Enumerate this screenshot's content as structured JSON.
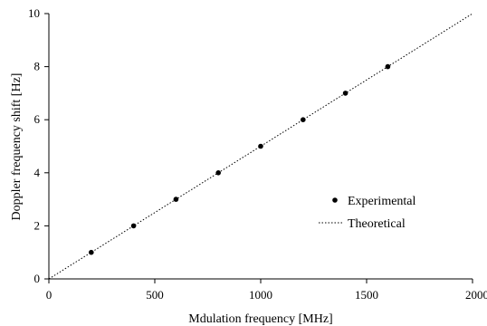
{
  "chart_data": {
    "type": "scatter",
    "title": "",
    "xlabel": "Mdulation frequency [MHz]",
    "ylabel": "Doppler frequency shift [Hz]",
    "xlim": [
      0,
      2000
    ],
    "ylim": [
      0,
      10
    ],
    "xticks": [
      "0",
      "500",
      "1000",
      "1500",
      "2000"
    ],
    "yticks": [
      "0",
      "2",
      "4",
      "6",
      "8",
      "10"
    ],
    "grid": false,
    "legend_position": "right",
    "series": [
      {
        "name": "Experimental",
        "type": "scatter",
        "marker": "filled-circle",
        "color": "#000000",
        "x": [
          200,
          400,
          600,
          800,
          1000,
          1200,
          1400,
          1600
        ],
        "y": [
          1,
          2,
          3,
          4,
          5,
          6,
          7,
          8
        ]
      },
      {
        "name": "Theoretical",
        "type": "line",
        "style": "dotted",
        "color": "#000000",
        "x": [
          0,
          2000
        ],
        "y": [
          0,
          10
        ]
      }
    ]
  }
}
